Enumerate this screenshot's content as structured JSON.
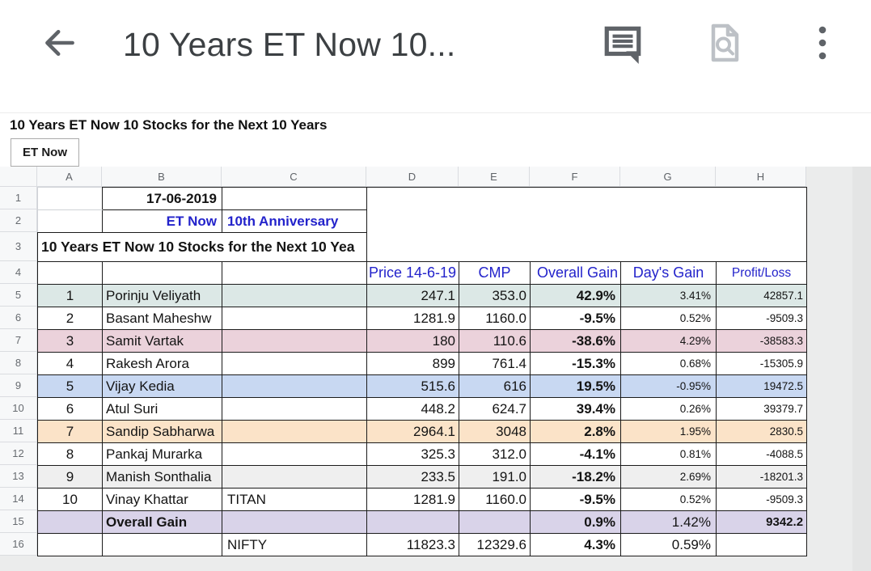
{
  "app_bar": {
    "title": "10 Years ET Now 10..."
  },
  "doc": {
    "heading": "10 Years ET Now 10 Stocks for the Next 10 Years",
    "sheet_tab": "ET Now"
  },
  "grid": {
    "columns": [
      "A",
      "B",
      "C",
      "D",
      "E",
      "F",
      "G",
      "H"
    ],
    "rows": [
      "1",
      "2",
      "3",
      "4",
      "5",
      "6",
      "7",
      "8",
      "9",
      "10",
      "11",
      "12",
      "13",
      "14",
      "15",
      "16"
    ]
  },
  "sheet": {
    "banner": {
      "date": "17-06-2019",
      "brand": "ET Now",
      "anniversary": "10th Anniversary",
      "sheet_title": "10 Years ET Now 10 Stocks for the Next 10 Yea"
    },
    "headers": {
      "price": "Price 14-6-19",
      "cmp": "CMP",
      "overall_gain": "Overall Gain",
      "days_gain": "Day's Gain",
      "profit_loss": "Profit/Loss"
    },
    "stock_rows": [
      {
        "rank": "1",
        "name": "Porinju Veliyath",
        "ticker": "",
        "price": "247.1",
        "cmp": "353.0",
        "overall": "42.9%",
        "day": "3.41%",
        "pl": "42857.1",
        "bg": "#dce8e6"
      },
      {
        "rank": "2",
        "name": "Basant Maheshw",
        "ticker": "",
        "price": "1281.9",
        "cmp": "1160.0",
        "overall": "-9.5%",
        "day": "0.52%",
        "pl": "-9509.3",
        "bg": "#ffffff"
      },
      {
        "rank": "3",
        "name": "Samit Vartak",
        "ticker": "",
        "price": "180",
        "cmp": "110.6",
        "overall": "-38.6%",
        "day": "4.29%",
        "pl": "-38583.3",
        "bg": "#ebd2db"
      },
      {
        "rank": "4",
        "name": "Rakesh Arora",
        "ticker": "",
        "price": "899",
        "cmp": "761.4",
        "overall": "-15.3%",
        "day": "0.68%",
        "pl": "-15305.9",
        "bg": "#ffffff"
      },
      {
        "rank": "5",
        "name": "Vijay Kedia",
        "ticker": "",
        "price": "515.6",
        "cmp": "616",
        "overall": "19.5%",
        "day": "-0.95%",
        "pl": "19472.5",
        "bg": "#c8d8f2"
      },
      {
        "rank": "6",
        "name": "Atul Suri",
        "ticker": "",
        "price": "448.2",
        "cmp": "624.7",
        "overall": "39.4%",
        "day": "0.26%",
        "pl": "39379.7",
        "bg": "#ffffff"
      },
      {
        "rank": "7",
        "name": "Sandip Sabharwa",
        "ticker": "",
        "price": "2964.1",
        "cmp": "3048",
        "overall": "2.8%",
        "day": "1.95%",
        "pl": "2830.5",
        "bg": "#fbe3c8"
      },
      {
        "rank": "8",
        "name": "Pankaj Murarka",
        "ticker": "",
        "price": "325.3",
        "cmp": "312.0",
        "overall": "-4.1%",
        "day": "0.81%",
        "pl": "-4088.5",
        "bg": "#ffffff"
      },
      {
        "rank": "9",
        "name": "Manish Sonthalia",
        "ticker": "",
        "price": "233.5",
        "cmp": "191.0",
        "overall": "-18.2%",
        "day": "2.69%",
        "pl": "-18201.3",
        "bg": "#efefef"
      },
      {
        "rank": "10",
        "name": "Vinay Khattar",
        "ticker": "TITAN",
        "price": "1281.9",
        "cmp": "1160.0",
        "overall": "-9.5%",
        "day": "0.52%",
        "pl": "-9509.3",
        "bg": "#ffffff"
      }
    ],
    "summary": {
      "label": "Overall Gain",
      "overall": "0.9%",
      "day": "1.42%",
      "pl": "9342.2",
      "bg": "#d9d3e9"
    },
    "nifty": {
      "label": "NIFTY",
      "price": "11823.3",
      "cmp": "12329.6",
      "overall": "4.3%",
      "day": "0.59%"
    }
  },
  "colors": {
    "accent_blue": "#2323cb",
    "table_border": "#1b1b1b",
    "gridline": "#cfd2d6",
    "canvas": "#ebecec",
    "strip_bg": "#f7f8f9"
  }
}
